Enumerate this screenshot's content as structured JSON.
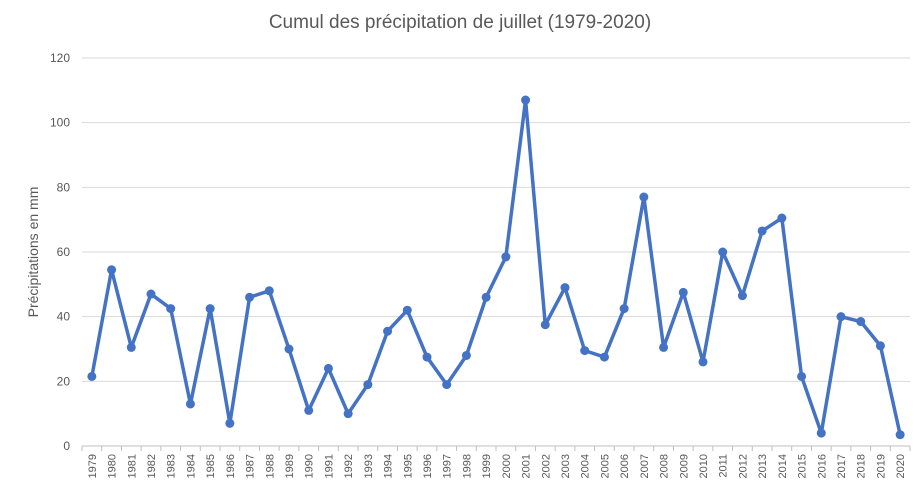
{
  "chart_data": {
    "type": "line",
    "title": "Cumul des précipitation de juillet (1979-2020)",
    "xlabel": "",
    "ylabel": "Précipitations en mm",
    "ylim": [
      0,
      120
    ],
    "yticks": [
      0,
      20,
      40,
      60,
      80,
      100,
      120
    ],
    "grid": true,
    "legend": "none",
    "categories": [
      "1979",
      "1980",
      "1981",
      "1982",
      "1983",
      "1984",
      "1985",
      "1986",
      "1987",
      "1988",
      "1989",
      "1990",
      "1991",
      "1992",
      "1993",
      "1994",
      "1995",
      "1996",
      "1997",
      "1998",
      "1999",
      "2000",
      "2001",
      "2002",
      "2003",
      "2004",
      "2005",
      "2006",
      "2007",
      "2008",
      "2009",
      "2010",
      "2011",
      "2012",
      "2013",
      "2014",
      "2015",
      "2016",
      "2017",
      "2018",
      "2019",
      "2020"
    ],
    "series": [
      {
        "color": "#4472c4",
        "values": [
          21.5,
          54.5,
          30.5,
          47.0,
          42.5,
          13.0,
          42.5,
          7.0,
          46.0,
          48.0,
          30.0,
          11.0,
          24.0,
          10.0,
          19.0,
          35.5,
          42.0,
          27.5,
          19.0,
          28.0,
          46.0,
          58.5,
          107.0,
          37.5,
          49.0,
          29.5,
          27.5,
          42.5,
          77.0,
          30.5,
          47.5,
          26.0,
          60.0,
          46.5,
          66.5,
          70.5,
          21.5,
          4.0,
          40.0,
          38.5,
          31.0,
          3.5
        ]
      }
    ]
  }
}
